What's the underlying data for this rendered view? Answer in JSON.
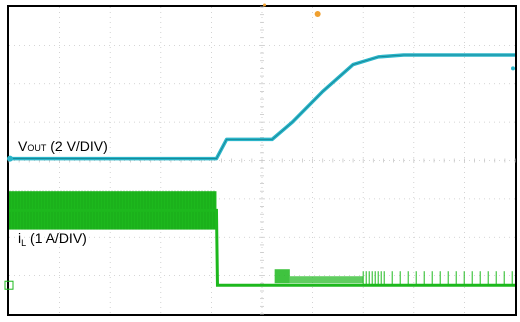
{
  "chart_data": {
    "type": "line",
    "title": "",
    "xlabel": "",
    "ylabel": "",
    "grid": true,
    "divisions": {
      "x": 10,
      "y": 8
    },
    "y_range_div": [
      -4,
      4
    ],
    "colors": {
      "background": "#ffffff",
      "frame": "#000000",
      "grid": "#c8c8c8",
      "vout": "#2bb5c9",
      "il": "#1db81d",
      "trigger_marker": "#f0a030"
    },
    "series": [
      {
        "name": "VOUT (2 V/DIV)",
        "label_main": "V",
        "label_sub": "OUT",
        "label_rest": " (2 V/DIV)",
        "scale": "2 V/DIV",
        "x_div": [
          0,
          4.1,
          4.3,
          5.2,
          5.6,
          6.2,
          6.8,
          7.3,
          7.8,
          8.3,
          10
        ],
        "y_div": [
          0.05,
          0.05,
          0.55,
          0.55,
          1.0,
          1.8,
          2.5,
          2.7,
          2.75,
          2.75,
          2.75
        ]
      },
      {
        "name": "iL (1 A/DIV)",
        "label_main": "i",
        "label_sub": "L",
        "label_rest": " (1 A/DIV)",
        "scale": "1 A/DIV",
        "x_div": [
          0,
          4.1,
          4.12,
          10
        ],
        "y_div": [
          -1.3,
          -1.3,
          -3.25,
          -3.25
        ],
        "band_div": [
          {
            "x": [
              0,
              4.1
            ],
            "y": [
              -0.8,
              -1.8
            ]
          }
        ]
      }
    ]
  }
}
